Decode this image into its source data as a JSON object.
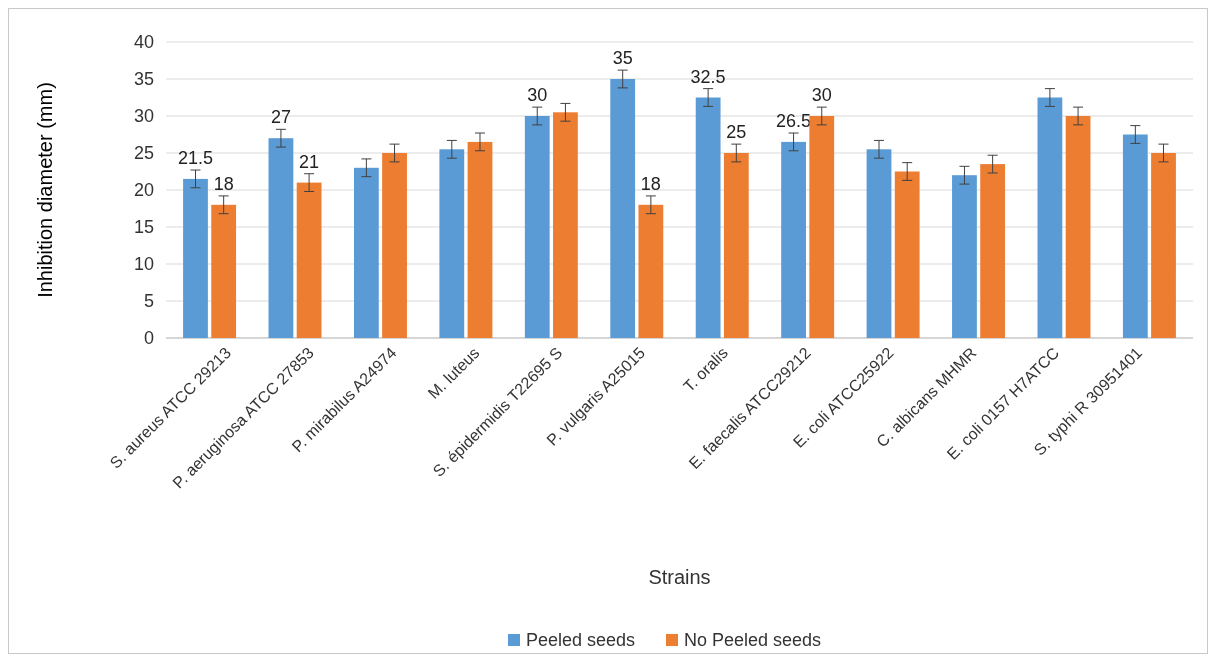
{
  "chart_data": {
    "type": "bar",
    "xlabel": "Strains",
    "ylabel": "Inhibition diameter (mm)",
    "categories": [
      "S. aureus ATCC 29213",
      "P. aeruginosa ATCC 27853",
      "P. mirabilus A24974",
      "M. luteus",
      "S. épidermidis T22695 S",
      "P. vulgaris A25015",
      "T. oralis",
      "E. faecalis ATCC29212",
      "E. coli ATCC25922",
      "C. albicans MHMR",
      "E. coli 0157 H7ATCC",
      "S. typhi R 30951401"
    ],
    "series": [
      {
        "name": "Peeled seeds",
        "color": "#5b9bd5",
        "values": [
          21.5,
          27,
          23,
          25.5,
          30,
          35,
          32.5,
          26.5,
          25.5,
          22,
          32.5,
          27.5
        ],
        "errors": [
          1.2,
          1.2,
          1.2,
          1.2,
          1.2,
          1.2,
          1.2,
          1.2,
          1.2,
          1.2,
          1.2,
          1.2
        ],
        "value_labels": [
          "21.5",
          "27",
          null,
          null,
          "30",
          "35",
          "32.5",
          "26.5",
          null,
          null,
          null,
          null
        ]
      },
      {
        "name": "No Peeled seeds",
        "color": "#ed7d31",
        "values": [
          18,
          21,
          25,
          26.5,
          30.5,
          18,
          25,
          30,
          22.5,
          23.5,
          30,
          25
        ],
        "errors": [
          1.2,
          1.2,
          1.2,
          1.2,
          1.2,
          1.2,
          1.2,
          1.2,
          1.2,
          1.2,
          1.2,
          1.2
        ],
        "value_labels": [
          "18",
          "21",
          null,
          null,
          null,
          "18",
          "25",
          "30",
          null,
          null,
          null,
          null
        ]
      }
    ],
    "ylim": [
      0,
      40
    ],
    "yticks": [
      0,
      5,
      10,
      15,
      20,
      25,
      30,
      35,
      40
    ],
    "grid": "y",
    "legend": "bottom"
  }
}
